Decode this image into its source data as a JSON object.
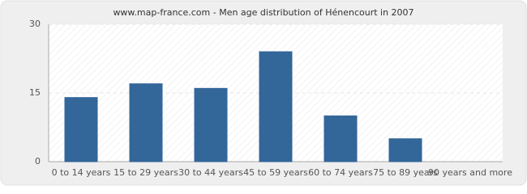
{
  "chart_data": {
    "type": "bar",
    "title": "www.map-france.com - Men age distribution of Hénencourt in 2007",
    "categories": [
      "0 to 14 years",
      "15 to 29 years",
      "30 to 44 years",
      "45 to 59 years",
      "60 to 74 years",
      "75 to 89 years",
      "90 years and more"
    ],
    "values": [
      14,
      17,
      16,
      24,
      10,
      5,
      0
    ],
    "color": "#336699",
    "ylim": [
      0,
      30
    ],
    "yticks": [
      0,
      15,
      30
    ],
    "grid": true
  }
}
